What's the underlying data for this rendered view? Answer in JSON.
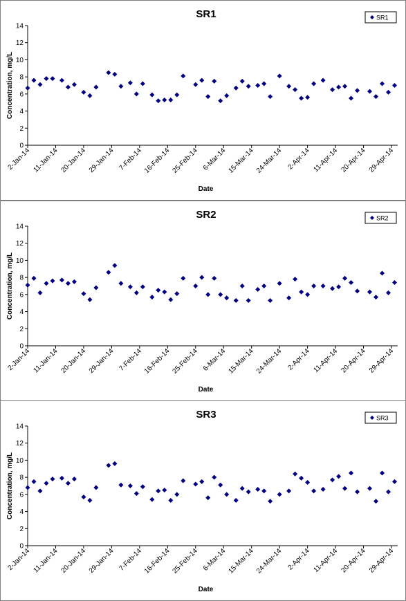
{
  "chart_data": [
    {
      "type": "scatter",
      "title": "SR1",
      "x_label": "Date",
      "y_label": "Concentration, mg/L",
      "legend": "upper right",
      "x": [
        "2-Jan-14",
        "4-Jan-14",
        "6-Jan-14",
        "8-Jan-14",
        "10-Jan-14",
        "13-Jan-14",
        "15-Jan-14",
        "17-Jan-14",
        "20-Jan-14",
        "22-Jan-14",
        "24-Jan-14",
        "28-Jan-14",
        "30-Jan-14",
        "1-Feb-14",
        "4-Feb-14",
        "6-Feb-14",
        "8-Feb-14",
        "11-Feb-14",
        "13-Feb-14",
        "15-Feb-14",
        "17-Feb-14",
        "19-Feb-14",
        "21-Feb-14",
        "25-Feb-14",
        "27-Feb-14",
        "1-Mar-14",
        "3-Mar-14",
        "5-Mar-14",
        "7-Mar-14",
        "10-Mar-14",
        "12-Mar-14",
        "14-Mar-14",
        "17-Mar-14",
        "19-Mar-14",
        "21-Mar-14",
        "24-Mar-14",
        "27-Mar-14",
        "29-Mar-14",
        "31-Mar-14",
        "2-Apr-14",
        "4-Apr-14",
        "7-Apr-14",
        "10-Apr-14",
        "12-Apr-14",
        "14-Apr-14",
        "16-Apr-14",
        "18-Apr-14",
        "22-Apr-14",
        "24-Apr-14",
        "26-Apr-14",
        "28-Apr-14",
        "30-Apr-14"
      ],
      "series": [
        {
          "name": "SR1",
          "color": "#000080",
          "values": [
            6.7,
            7.6,
            7.1,
            7.8,
            7.8,
            7.6,
            6.8,
            7.1,
            6.2,
            5.8,
            6.8,
            8.5,
            8.3,
            6.9,
            7.3,
            6.0,
            7.2,
            5.9,
            5.2,
            5.3,
            5.3,
            5.9,
            8.1,
            7.1,
            7.6,
            5.7,
            7.5,
            5.2,
            5.8,
            6.7,
            7.5,
            6.9,
            7.0,
            7.2,
            5.7,
            8.1,
            6.9,
            6.5,
            5.5,
            5.6,
            7.2,
            7.6,
            6.5,
            6.8,
            6.9,
            5.5,
            6.4,
            6.3,
            5.7,
            7.2,
            6.2,
            7.0
          ]
        }
      ],
      "xlim": [
        "2-Jan-14",
        "1-May-14"
      ],
      "xticks": [
        "2-Jan-14",
        "11-Jan-14",
        "20-Jan-14",
        "29-Jan-14",
        "7-Feb-14",
        "16-Feb-14",
        "25-Feb-14",
        "6-Mar-14",
        "15-Mar-14",
        "24-Mar-14",
        "2-Apr-14",
        "11-Apr-14",
        "20-Apr-14",
        "29-Apr-14"
      ],
      "ylim": [
        0,
        14
      ],
      "yticks": [
        0,
        2,
        4,
        6,
        8,
        10,
        12,
        14
      ]
    },
    {
      "type": "scatter",
      "title": "SR2",
      "x_label": "Date",
      "y_label": "Concentration, mg/L",
      "legend": "upper right",
      "x": [
        "2-Jan-14",
        "4-Jan-14",
        "6-Jan-14",
        "8-Jan-14",
        "10-Jan-14",
        "13-Jan-14",
        "15-Jan-14",
        "17-Jan-14",
        "20-Jan-14",
        "22-Jan-14",
        "24-Jan-14",
        "28-Jan-14",
        "30-Jan-14",
        "1-Feb-14",
        "4-Feb-14",
        "6-Feb-14",
        "8-Feb-14",
        "11-Feb-14",
        "13-Feb-14",
        "15-Feb-14",
        "17-Feb-14",
        "19-Feb-14",
        "21-Feb-14",
        "25-Feb-14",
        "27-Feb-14",
        "1-Mar-14",
        "3-Mar-14",
        "5-Mar-14",
        "7-Mar-14",
        "10-Mar-14",
        "12-Mar-14",
        "14-Mar-14",
        "17-Mar-14",
        "19-Mar-14",
        "21-Mar-14",
        "24-Mar-14",
        "27-Mar-14",
        "29-Mar-14",
        "31-Mar-14",
        "2-Apr-14",
        "4-Apr-14",
        "7-Apr-14",
        "10-Apr-14",
        "12-Apr-14",
        "14-Apr-14",
        "16-Apr-14",
        "18-Apr-14",
        "22-Apr-14",
        "24-Apr-14",
        "26-Apr-14",
        "28-Apr-14",
        "30-Apr-14"
      ],
      "series": [
        {
          "name": "SR2",
          "color": "#000080",
          "values": [
            7.1,
            7.9,
            6.2,
            7.3,
            7.6,
            7.7,
            7.3,
            7.5,
            6.1,
            5.4,
            6.8,
            8.6,
            9.4,
            7.3,
            6.9,
            6.2,
            6.9,
            5.7,
            6.5,
            6.3,
            5.4,
            6.1,
            7.9,
            7.0,
            8.0,
            6.0,
            7.9,
            6.0,
            5.6,
            5.3,
            7.0,
            5.3,
            6.6,
            7.0,
            5.3,
            7.3,
            5.6,
            7.8,
            6.3,
            6.0,
            7.0,
            7.0,
            6.7,
            6.9,
            7.9,
            7.4,
            6.4,
            6.3,
            5.7,
            8.5,
            6.2,
            7.4
          ]
        }
      ],
      "xlim": [
        "2-Jan-14",
        "1-May-14"
      ],
      "xticks": [
        "2-Jan-14",
        "11-Jan-14",
        "20-Jan-14",
        "29-Jan-14",
        "7-Feb-14",
        "16-Feb-14",
        "25-Feb-14",
        "6-Mar-14",
        "15-Mar-14",
        "24-Mar-14",
        "2-Apr-14",
        "11-Apr-14",
        "20-Apr-14",
        "29-Apr-14"
      ],
      "ylim": [
        0,
        14
      ],
      "yticks": [
        0,
        2,
        4,
        6,
        8,
        10,
        12,
        14
      ]
    },
    {
      "type": "scatter",
      "title": "SR3",
      "x_label": "Date",
      "y_label": "Concentration, mg/L",
      "legend": "upper right",
      "x": [
        "2-Jan-14",
        "4-Jan-14",
        "6-Jan-14",
        "8-Jan-14",
        "10-Jan-14",
        "13-Jan-14",
        "15-Jan-14",
        "17-Jan-14",
        "20-Jan-14",
        "22-Jan-14",
        "24-Jan-14",
        "28-Jan-14",
        "30-Jan-14",
        "1-Feb-14",
        "4-Feb-14",
        "6-Feb-14",
        "8-Feb-14",
        "11-Feb-14",
        "13-Feb-14",
        "15-Feb-14",
        "17-Feb-14",
        "19-Feb-14",
        "21-Feb-14",
        "25-Feb-14",
        "27-Feb-14",
        "1-Mar-14",
        "3-Mar-14",
        "5-Mar-14",
        "7-Mar-14",
        "10-Mar-14",
        "12-Mar-14",
        "14-Mar-14",
        "17-Mar-14",
        "19-Mar-14",
        "21-Mar-14",
        "24-Mar-14",
        "27-Mar-14",
        "29-Mar-14",
        "31-Mar-14",
        "2-Apr-14",
        "4-Apr-14",
        "7-Apr-14",
        "10-Apr-14",
        "12-Apr-14",
        "14-Apr-14",
        "16-Apr-14",
        "18-Apr-14",
        "22-Apr-14",
        "24-Apr-14",
        "26-Apr-14",
        "28-Apr-14",
        "30-Apr-14"
      ],
      "series": [
        {
          "name": "SR3",
          "color": "#000080",
          "values": [
            6.8,
            7.5,
            6.4,
            7.3,
            7.8,
            7.9,
            7.3,
            7.8,
            5.7,
            5.3,
            6.8,
            9.4,
            9.6,
            7.1,
            7.0,
            6.1,
            6.9,
            5.4,
            6.4,
            6.5,
            5.3,
            6.0,
            7.6,
            7.2,
            7.5,
            5.6,
            8.0,
            7.1,
            6.0,
            5.3,
            6.7,
            6.3,
            6.6,
            6.4,
            5.2,
            6.0,
            6.4,
            8.4,
            7.9,
            7.4,
            6.4,
            6.6,
            7.7,
            8.1,
            6.7,
            8.5,
            6.3,
            6.7,
            5.2,
            8.5,
            6.3,
            7.5
          ]
        }
      ],
      "xlim": [
        "2-Jan-14",
        "1-May-14"
      ],
      "xticks": [
        "2-Jan-14",
        "11-Jan-14",
        "20-Jan-14",
        "29-Jan-14",
        "7-Feb-14",
        "16-Feb-14",
        "25-Feb-14",
        "6-Mar-14",
        "15-Mar-14",
        "24-Mar-14",
        "2-Apr-14",
        "11-Apr-14",
        "20-Apr-14",
        "29-Apr-14"
      ],
      "ylim": [
        0,
        14
      ],
      "yticks": [
        0,
        2,
        4,
        6,
        8,
        10,
        12,
        14
      ]
    }
  ]
}
